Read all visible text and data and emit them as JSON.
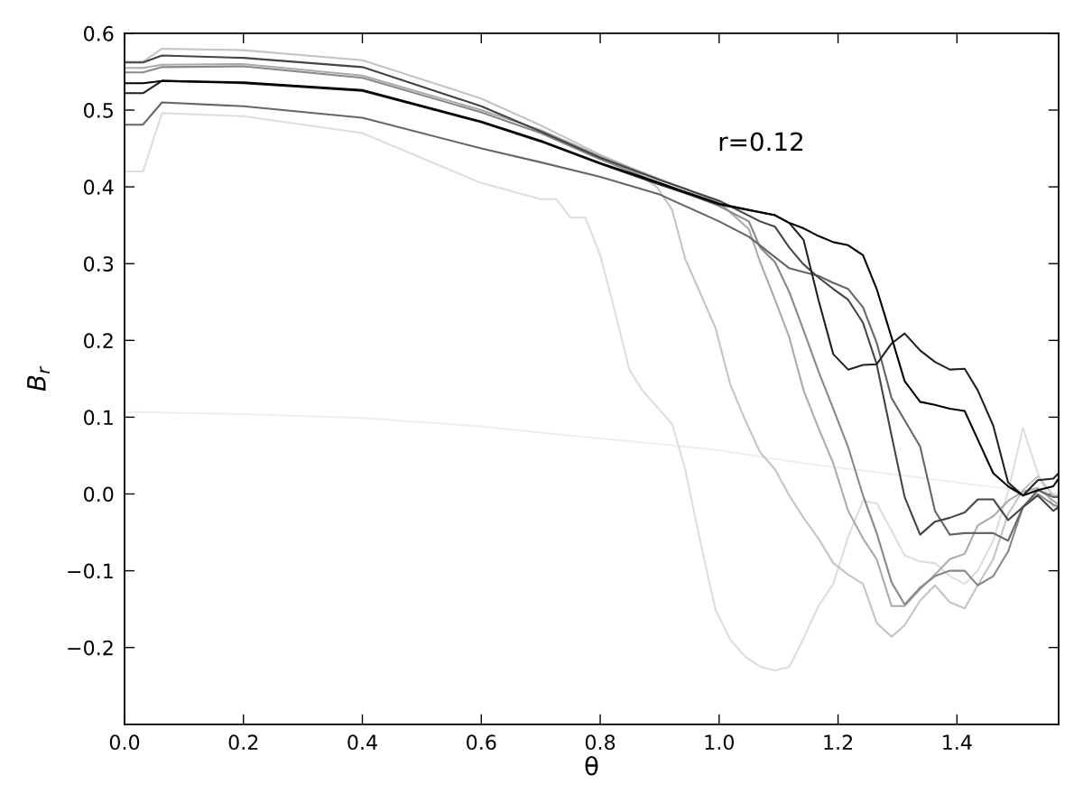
{
  "chart_data": {
    "type": "line",
    "xlabel": "θ",
    "ylabel": "B$_{r}$",
    "annotations": [
      "r=0.12"
    ],
    "xlim": [
      0,
      1.571
    ],
    "ylim": [
      -0.3,
      0.6
    ],
    "xticks": [
      {
        "value": 0,
        "label": "0.0"
      },
      {
        "value": 0.2,
        "label": "0.2"
      },
      {
        "value": 0.4,
        "label": "0.4"
      },
      {
        "value": 0.6,
        "label": "0.6"
      },
      {
        "value": 0.8,
        "label": "0.8"
      },
      {
        "value": 1.0,
        "label": "1.0"
      },
      {
        "value": 1.2,
        "label": "1.2"
      },
      {
        "value": 1.4,
        "label": "1.4"
      }
    ],
    "yticks": [
      {
        "value": -0.2,
        "label": "−0.2"
      },
      {
        "value": -0.1,
        "label": "−0.1"
      },
      {
        "value": 0,
        "label": "0.0"
      },
      {
        "value": 0.1,
        "label": "0.1"
      },
      {
        "value": 0.2,
        "label": "0.2"
      },
      {
        "value": 0.3,
        "label": "0.3"
      },
      {
        "value": 0.4,
        "label": "0.4"
      },
      {
        "value": 0.5,
        "label": "0.5"
      },
      {
        "value": 0.6,
        "label": "0.6"
      }
    ],
    "series": [
      {
        "color": "#eeeeee",
        "x": [
          0,
          0.2,
          0.4,
          0.6,
          0.7,
          0.9,
          1.0,
          1.142,
          1.3,
          1.45,
          1.571
        ],
        "values": [
          0.107,
          0.104,
          0.099,
          0.088,
          0.08,
          0.065,
          0.057,
          0.04,
          0.025,
          0.01,
          0.0
        ]
      },
      {
        "color": "#dddddd",
        "x": [
          0,
          0.031,
          0.063,
          0.2,
          0.4,
          0.6,
          0.7,
          0.726,
          0.75,
          0.775,
          0.8,
          0.823,
          0.849,
          0.871,
          0.896,
          0.921,
          0.943,
          0.968,
          0.994,
          1.019,
          1.044,
          1.069,
          1.094,
          1.118,
          1.142,
          1.167,
          1.192,
          1.217,
          1.242,
          1.265,
          1.29,
          1.312,
          1.338,
          1.363,
          1.388,
          1.413,
          1.435,
          1.461,
          1.486,
          1.511,
          1.536,
          1.562,
          1.571
        ],
        "values": [
          0.42,
          0.42,
          0.496,
          0.492,
          0.47,
          0.405,
          0.384,
          0.384,
          0.36,
          0.36,
          0.311,
          0.243,
          0.162,
          0.135,
          0.113,
          0.091,
          0.032,
          -0.061,
          -0.151,
          -0.19,
          -0.212,
          -0.225,
          -0.23,
          -0.225,
          -0.188,
          -0.146,
          -0.117,
          -0.056,
          -0.009,
          -0.012,
          -0.048,
          -0.08,
          -0.088,
          -0.09,
          -0.107,
          -0.117,
          -0.1,
          -0.061,
          0.003,
          0.086,
          0.027,
          -0.017,
          -0.022
        ]
      },
      {
        "color": "#c4c4c4",
        "x": [
          0,
          0.031,
          0.063,
          0.2,
          0.4,
          0.6,
          0.7,
          0.8,
          0.85,
          0.896,
          0.921,
          0.943,
          0.968,
          0.994,
          1.019,
          1.044,
          1.069,
          1.094,
          1.118,
          1.142,
          1.167,
          1.192,
          1.217,
          1.242,
          1.265,
          1.29,
          1.312,
          1.338,
          1.363,
          1.388,
          1.413,
          1.435,
          1.461,
          1.486,
          1.511,
          1.536,
          1.562,
          1.571
        ],
        "values": [
          0.563,
          0.563,
          0.58,
          0.578,
          0.565,
          0.515,
          0.48,
          0.442,
          0.425,
          0.399,
          0.37,
          0.306,
          0.262,
          0.216,
          0.142,
          0.096,
          0.054,
          0.032,
          -0.002,
          -0.031,
          -0.058,
          -0.09,
          -0.105,
          -0.117,
          -0.168,
          -0.186,
          -0.171,
          -0.139,
          -0.119,
          -0.141,
          -0.149,
          -0.119,
          -0.085,
          -0.026,
          0.005,
          0.023,
          -0.002,
          -0.004
        ]
      },
      {
        "color": "#aaaaaa",
        "x": [
          0,
          0.031,
          0.063,
          0.2,
          0.4,
          0.6,
          0.7,
          0.8,
          0.9,
          1.0,
          1.05,
          1.069,
          1.094,
          1.118,
          1.142,
          1.167,
          1.192,
          1.217,
          1.242,
          1.265,
          1.29,
          1.312,
          1.338,
          1.363,
          1.388,
          1.413,
          1.435,
          1.461,
          1.486,
          1.511,
          1.536,
          1.562,
          1.571
        ],
        "values": [
          0.555,
          0.555,
          0.559,
          0.56,
          0.545,
          0.5,
          0.474,
          0.44,
          0.41,
          0.38,
          0.345,
          0.302,
          0.253,
          0.204,
          0.135,
          0.086,
          0.04,
          -0.022,
          -0.058,
          -0.085,
          -0.146,
          -0.146,
          -0.124,
          -0.105,
          -0.085,
          -0.078,
          -0.041,
          -0.029,
          -0.009,
          0.003,
          0.008,
          -0.009,
          -0.014
        ]
      },
      {
        "color": "#888888",
        "x": [
          0,
          0.031,
          0.063,
          0.2,
          0.4,
          0.6,
          0.7,
          0.8,
          0.9,
          1.0,
          1.05,
          1.069,
          1.094,
          1.118,
          1.142,
          1.167,
          1.192,
          1.217,
          1.242,
          1.265,
          1.29,
          1.312,
          1.338,
          1.363,
          1.388,
          1.413,
          1.435,
          1.461,
          1.486,
          1.511,
          1.536,
          1.562,
          1.571
        ],
        "values": [
          0.549,
          0.549,
          0.556,
          0.557,
          0.542,
          0.497,
          0.47,
          0.436,
          0.405,
          0.375,
          0.355,
          0.321,
          0.302,
          0.263,
          0.213,
          0.16,
          0.111,
          0.061,
          -0.002,
          -0.051,
          -0.115,
          -0.144,
          -0.122,
          -0.107,
          -0.1,
          -0.1,
          -0.119,
          -0.107,
          -0.075,
          -0.017,
          0.0,
          -0.014,
          -0.017
        ]
      },
      {
        "color": "#666666",
        "x": [
          0,
          0.031,
          0.063,
          0.2,
          0.4,
          0.6,
          0.7,
          0.8,
          0.9,
          1.0,
          1.05,
          1.118,
          1.142,
          1.167,
          1.192,
          1.217,
          1.242,
          1.265,
          1.29,
          1.312,
          1.338,
          1.363,
          1.388,
          1.413,
          1.435,
          1.461,
          1.486,
          1.511,
          1.536,
          1.562,
          1.571
        ],
        "values": [
          0.481,
          0.481,
          0.51,
          0.505,
          0.49,
          0.45,
          0.432,
          0.413,
          0.39,
          0.355,
          0.335,
          0.294,
          0.289,
          0.284,
          0.275,
          0.267,
          0.243,
          0.197,
          0.125,
          0.096,
          0.062,
          -0.022,
          -0.053,
          -0.051,
          -0.051,
          -0.051,
          -0.061,
          -0.017,
          0.005,
          -0.004,
          -0.004
        ]
      },
      {
        "color": "#444444",
        "x": [
          0,
          0.031,
          0.063,
          0.2,
          0.4,
          0.6,
          0.7,
          0.8,
          0.9,
          1.0,
          1.069,
          1.094,
          1.118,
          1.142,
          1.167,
          1.192,
          1.217,
          1.242,
          1.265,
          1.29,
          1.312,
          1.338,
          1.363,
          1.388,
          1.413,
          1.435,
          1.461,
          1.486,
          1.511,
          1.536,
          1.562,
          1.571
        ],
        "values": [
          0.562,
          0.562,
          0.571,
          0.568,
          0.556,
          0.505,
          0.472,
          0.438,
          0.409,
          0.382,
          0.355,
          0.348,
          0.321,
          0.299,
          0.282,
          0.267,
          0.253,
          0.223,
          0.169,
          0.076,
          -0.004,
          -0.053,
          -0.036,
          -0.031,
          -0.024,
          -0.007,
          -0.007,
          -0.034,
          -0.017,
          -0.002,
          -0.022,
          -0.017
        ]
      },
      {
        "color": "#222222",
        "x": [
          0,
          0.031,
          0.063,
          0.2,
          0.4,
          0.6,
          0.7,
          0.8,
          0.9,
          1.0,
          1.094,
          1.118,
          1.142,
          1.167,
          1.192,
          1.217,
          1.242,
          1.265,
          1.29,
          1.312,
          1.338,
          1.363,
          1.388,
          1.413,
          1.435,
          1.461,
          1.486,
          1.511,
          1.536,
          1.562,
          1.571
        ],
        "values": [
          0.522,
          0.522,
          0.538,
          0.535,
          0.525,
          0.484,
          0.459,
          0.43,
          0.403,
          0.377,
          0.363,
          0.353,
          0.331,
          0.253,
          0.182,
          0.162,
          0.168,
          0.169,
          0.196,
          0.209,
          0.187,
          0.172,
          0.162,
          0.163,
          0.135,
          0.089,
          0.015,
          -0.002,
          0.018,
          0.02,
          0.027
        ]
      },
      {
        "color": "#000000",
        "x": [
          0,
          0.031,
          0.063,
          0.2,
          0.4,
          0.6,
          0.7,
          0.8,
          0.9,
          1.0,
          1.094,
          1.118,
          1.142,
          1.167,
          1.192,
          1.217,
          1.242,
          1.265,
          1.29,
          1.312,
          1.338,
          1.363,
          1.388,
          1.413,
          1.435,
          1.461,
          1.486,
          1.511,
          1.536,
          1.562,
          1.571
        ],
        "values": [
          0.535,
          0.535,
          0.538,
          0.536,
          0.526,
          0.485,
          0.46,
          0.431,
          0.405,
          0.378,
          0.363,
          0.353,
          0.346,
          0.336,
          0.328,
          0.324,
          0.311,
          0.267,
          0.204,
          0.147,
          0.12,
          0.116,
          0.111,
          0.108,
          0.071,
          0.027,
          0.01,
          -0.002,
          0.005,
          0.01,
          0.02
        ]
      }
    ]
  }
}
